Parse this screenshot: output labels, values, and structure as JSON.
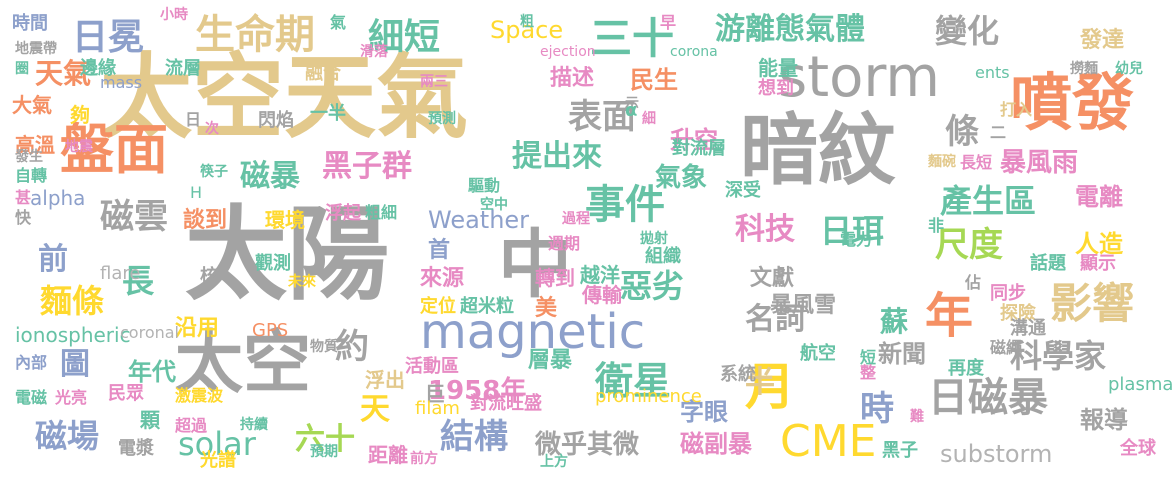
{
  "colors": {
    "gold": "#e3c98c",
    "gray": "#a3a3a3",
    "orange": "#f59064",
    "teal": "#66c2a5",
    "blue": "#8da0cb",
    "pink": "#e78ac3",
    "green": "#a6d854",
    "yellow": "#ffd92f",
    "tan": "#e5c494",
    "lightgray": "#b3b3b3"
  },
  "words": [
    {
      "t": "太空天氣",
      "c": "gold"
    },
    {
      "t": "太陽",
      "c": "gray"
    },
    {
      "t": "暗紋",
      "c": "gray"
    },
    {
      "t": "storm",
      "c": "gray"
    },
    {
      "t": "噴發",
      "c": "orange"
    },
    {
      "t": "中",
      "c": "gray"
    },
    {
      "t": "太空",
      "c": "gray"
    },
    {
      "t": "盤面",
      "c": "orange"
    },
    {
      "t": "magnetic",
      "c": "blue"
    },
    {
      "t": "日冕",
      "c": "blue"
    },
    {
      "t": "生命期",
      "c": "gold"
    },
    {
      "t": "細短",
      "c": "teal"
    },
    {
      "t": "三十",
      "c": "teal"
    },
    {
      "t": "游離態氣體",
      "c": "teal"
    },
    {
      "t": "變化",
      "c": "gray"
    },
    {
      "t": "發達",
      "c": "gold"
    },
    {
      "t": "事件",
      "c": "teal"
    },
    {
      "t": "提出來",
      "c": "teal"
    },
    {
      "t": "黑子群",
      "c": "pink"
    },
    {
      "t": "磁暴",
      "c": "teal"
    },
    {
      "t": "磁雲",
      "c": "gray"
    },
    {
      "t": "表面",
      "c": "gray"
    },
    {
      "t": "衛星",
      "c": "teal"
    },
    {
      "t": "日磁暴",
      "c": "gray"
    },
    {
      "t": "結構",
      "c": "blue"
    },
    {
      "t": "CME",
      "c": "yellow"
    },
    {
      "t": "月",
      "c": "yellow"
    },
    {
      "t": "年",
      "c": "orange"
    },
    {
      "t": "影響",
      "c": "gold"
    },
    {
      "t": "科學家",
      "c": "gray"
    },
    {
      "t": "產生區",
      "c": "teal"
    },
    {
      "t": "尺度",
      "c": "green"
    },
    {
      "t": "科技",
      "c": "pink"
    },
    {
      "t": "日珥",
      "c": "teal"
    },
    {
      "t": "惡劣",
      "c": "teal"
    },
    {
      "t": "solar",
      "c": "teal"
    },
    {
      "t": "磁場",
      "c": "blue"
    },
    {
      "t": "麵條",
      "c": "yellow"
    },
    {
      "t": "圖",
      "c": "blue"
    },
    {
      "t": "長",
      "c": "teal"
    },
    {
      "t": "前",
      "c": "blue"
    },
    {
      "t": "天氣",
      "c": "orange"
    },
    {
      "t": "時間",
      "c": "blue"
    },
    {
      "t": "條",
      "c": "gray"
    },
    {
      "t": "暴風雨",
      "c": "pink"
    },
    {
      "t": "電離",
      "c": "pink"
    },
    {
      "t": "人造",
      "c": "yellow"
    },
    {
      "t": "暴風雪",
      "c": "gray"
    },
    {
      "t": "文獻",
      "c": "gray"
    },
    {
      "t": "名詞",
      "c": "gray"
    },
    {
      "t": "蘇",
      "c": "teal"
    },
    {
      "t": "新聞",
      "c": "gray"
    },
    {
      "t": "報導",
      "c": "gray"
    },
    {
      "t": "substorm",
      "c": "lightgray"
    },
    {
      "t": "磁副暴",
      "c": "pink"
    },
    {
      "t": "微乎其微",
      "c": "gray"
    },
    {
      "t": "1958年",
      "c": "pink"
    },
    {
      "t": "字眼",
      "c": "blue"
    },
    {
      "t": "時",
      "c": "blue"
    },
    {
      "t": "半",
      "c": "gold"
    },
    {
      "t": "天",
      "c": "yellow"
    },
    {
      "t": "約",
      "c": "gray"
    },
    {
      "t": "六十",
      "c": "green"
    },
    {
      "t": "年代",
      "c": "teal"
    },
    {
      "t": "沿用",
      "c": "yellow"
    },
    {
      "t": "Space",
      "c": "yellow"
    },
    {
      "t": "早",
      "c": "pink"
    },
    {
      "t": "民生",
      "c": "orange"
    },
    {
      "t": "描述",
      "c": "pink"
    },
    {
      "t": "升空",
      "c": "pink"
    },
    {
      "t": "氣象",
      "c": "teal"
    },
    {
      "t": "Weather",
      "c": "blue"
    },
    {
      "t": "首",
      "c": "blue"
    },
    {
      "t": "來源",
      "c": "pink"
    },
    {
      "t": "定位",
      "c": "yellow"
    },
    {
      "t": "超米粒",
      "c": "teal"
    },
    {
      "t": "美",
      "c": "orange"
    },
    {
      "t": "層暴",
      "c": "teal"
    },
    {
      "t": "傳輸",
      "c": "pink"
    },
    {
      "t": "ionospheric",
      "c": "teal"
    },
    {
      "t": "GPS",
      "c": "orange"
    },
    {
      "t": "環境",
      "c": "yellow"
    },
    {
      "t": "談到",
      "c": "orange"
    },
    {
      "t": "夠",
      "c": "yellow"
    },
    {
      "t": "一半",
      "c": "teal"
    },
    {
      "t": "高溫",
      "c": "orange"
    },
    {
      "t": "大氣",
      "c": "orange"
    },
    {
      "t": "邊緣",
      "c": "teal"
    },
    {
      "t": "流層",
      "c": "teal"
    },
    {
      "t": "融合",
      "c": "gold"
    },
    {
      "t": "能量",
      "c": "teal"
    },
    {
      "t": "想到",
      "c": "pink"
    },
    {
      "t": "對流層",
      "c": "teal"
    },
    {
      "t": "深受",
      "c": "teal"
    },
    {
      "t": "電力",
      "c": "teal"
    },
    {
      "t": "話題",
      "c": "teal"
    },
    {
      "t": "顯示",
      "c": "pink"
    },
    {
      "t": "同步",
      "c": "pink"
    },
    {
      "t": "探險",
      "c": "gold"
    },
    {
      "t": "溝通",
      "c": "gray"
    },
    {
      "t": "磁繩",
      "c": "gray"
    },
    {
      "t": "航空",
      "c": "teal"
    },
    {
      "t": "再度",
      "c": "teal"
    },
    {
      "t": "plasma",
      "c": "teal"
    },
    {
      "t": "全球",
      "c": "pink"
    },
    {
      "t": "黑子",
      "c": "teal"
    },
    {
      "t": "電磁",
      "c": "teal"
    },
    {
      "t": "光亮",
      "c": "pink"
    },
    {
      "t": "民眾",
      "c": "pink"
    },
    {
      "t": "電漿",
      "c": "gray"
    },
    {
      "t": "光譜",
      "c": "yellow"
    },
    {
      "t": "距離",
      "c": "pink"
    },
    {
      "t": "顆",
      "c": "teal"
    },
    {
      "t": "轉到",
      "c": "pink"
    },
    {
      "t": "越洋",
      "c": "teal"
    },
    {
      "t": "組織",
      "c": "teal"
    },
    {
      "t": "週期",
      "c": "pink"
    },
    {
      "t": "觀測",
      "c": "teal"
    },
    {
      "t": "浮起",
      "c": "pink"
    },
    {
      "t": "粗細",
      "c": "teal"
    },
    {
      "t": "驅動",
      "c": "teal"
    },
    {
      "t": "核",
      "c": "gray"
    },
    {
      "t": "浮出",
      "c": "gold"
    },
    {
      "t": "巨",
      "c": "gray"
    },
    {
      "t": "系統",
      "c": "gray"
    },
    {
      "t": "prominence",
      "c": "yellow"
    },
    {
      "t": "filam",
      "c": "yellow"
    },
    {
      "t": "對流旺盛",
      "c": "pink"
    },
    {
      "t": "活動區",
      "c": "pink"
    },
    {
      "t": "激震波",
      "c": "yellow"
    },
    {
      "t": "超過",
      "c": "pink"
    },
    {
      "t": "持續",
      "c": "teal"
    },
    {
      "t": "預期",
      "c": "teal"
    },
    {
      "t": "前方",
      "c": "pink"
    },
    {
      "t": "上方",
      "c": "teal"
    },
    {
      "t": "物質",
      "c": "gray"
    },
    {
      "t": "內部",
      "c": "blue"
    },
    {
      "t": "閃焰",
      "c": "gray"
    },
    {
      "t": "alpha",
      "c": "blue"
    },
    {
      "t": "flare",
      "c": "lightgray"
    },
    {
      "t": "coronal",
      "c": "lightgray"
    },
    {
      "t": "mass",
      "c": "blue"
    },
    {
      "t": "ejection",
      "c": "pink"
    },
    {
      "t": "corona",
      "c": "teal"
    },
    {
      "t": "ents",
      "c": "teal"
    },
    {
      "t": "氣",
      "c": "teal"
    },
    {
      "t": "滑落",
      "c": "pink"
    },
    {
      "t": "兩三",
      "c": "pink"
    },
    {
      "t": "預測",
      "c": "teal"
    },
    {
      "t": "小時",
      "c": "pink"
    },
    {
      "t": "地震帶",
      "c": "gray"
    },
    {
      "t": "圈",
      "c": "teal"
    },
    {
      "t": "日",
      "c": "gray"
    },
    {
      "t": "次",
      "c": "pink"
    },
    {
      "t": "筷子",
      "c": "teal"
    },
    {
      "t": "H",
      "c": "teal"
    },
    {
      "t": "發生",
      "c": "gray"
    },
    {
      "t": "地震",
      "c": "pink"
    },
    {
      "t": "自轉",
      "c": "teal"
    },
    {
      "t": "甚",
      "c": "pink"
    },
    {
      "t": "快",
      "c": "gray"
    },
    {
      "t": "空中",
      "c": "teal"
    },
    {
      "t": "過程",
      "c": "pink"
    },
    {
      "t": "拋射",
      "c": "teal"
    },
    {
      "t": "佔",
      "c": "gray"
    },
    {
      "t": "打入",
      "c": "gold"
    },
    {
      "t": "麵碗",
      "c": "gold"
    },
    {
      "t": "長短",
      "c": "pink"
    },
    {
      "t": "撈麵",
      "c": "gray"
    },
    {
      "t": "幼兒",
      "c": "teal"
    },
    {
      "t": "粗",
      "c": "teal"
    },
    {
      "t": "示",
      "c": "gray"
    },
    {
      "t": "細",
      "c": "pink"
    },
    {
      "t": "未來",
      "c": "yellow"
    },
    {
      "t": "短",
      "c": "teal"
    },
    {
      "t": "整",
      "c": "pink"
    },
    {
      "t": "難",
      "c": "pink"
    },
    {
      "t": "非",
      "c": "teal"
    },
    {
      "t": "二",
      "c": "gray"
    },
    {
      "t": "α",
      "c": "teal"
    }
  ]
}
